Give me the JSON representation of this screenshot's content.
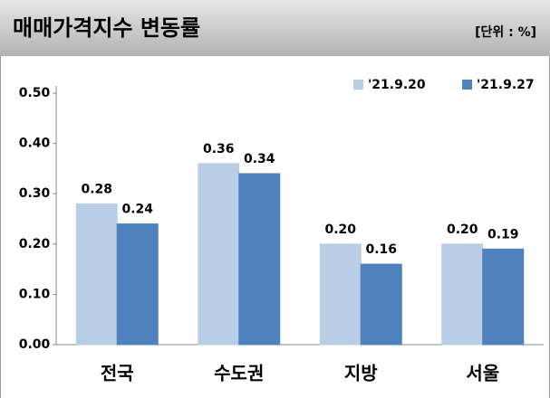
{
  "chart_data": {
    "type": "bar",
    "title": "매매가격지수 변동률",
    "unit": "[단위 : %]",
    "categories": [
      "전국",
      "수도권",
      "지방",
      "서울"
    ],
    "series": [
      {
        "name": "'21.9.20",
        "color": "#b9cde5",
        "values": [
          0.28,
          0.36,
          0.2,
          0.2
        ],
        "value_labels": [
          "0.28",
          "0.36",
          "0.20",
          "0.20"
        ]
      },
      {
        "name": "'21.9.27",
        "color": "#4f81bd",
        "values": [
          0.24,
          0.34,
          0.16,
          0.19
        ],
        "value_labels": [
          "0.24",
          "0.34",
          "0.16",
          "0.19"
        ]
      }
    ],
    "ylim": [
      0,
      0.5
    ],
    "yticks": [
      {
        "value": 0,
        "label": "0.00"
      },
      {
        "value": 0.1,
        "label": "0.10"
      },
      {
        "value": 0.2,
        "label": "0.20"
      },
      {
        "value": 0.3,
        "label": "0.30"
      },
      {
        "value": 0.4,
        "label": "0.40"
      },
      {
        "value": 0.5,
        "label": "0.50"
      }
    ]
  }
}
